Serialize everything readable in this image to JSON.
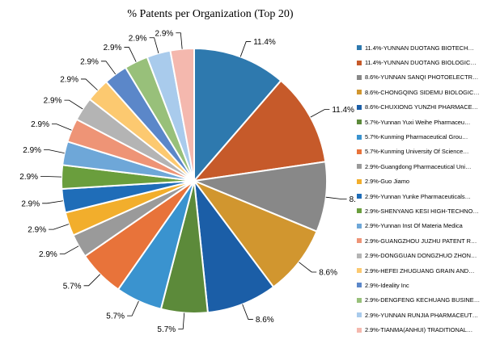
{
  "chart_data": {
    "type": "pie",
    "title": "% Patents per Organization (Top 20)",
    "start_angle_deg": 0,
    "direction": "clockwise",
    "legend_position": "right",
    "slices": [
      {
        "label": "11.4%",
        "legend": "11.4%-YUNNAN DUOTANG BIOTECH…",
        "value": 11.4,
        "color": "#2E79AE"
      },
      {
        "label": "11.4%",
        "legend": "11.4%-YUNNAN DUOTANG BIOLOGIC…",
        "value": 11.4,
        "color": "#C65A2A"
      },
      {
        "label": "8.6%",
        "legend": "8.6%-YUNNAN SANQI PHOTOELECTR…",
        "value": 8.6,
        "color": "#888888"
      },
      {
        "label": "8.6%",
        "legend": "8.6%-CHONGQING SIDEMU BIOLOGIC…",
        "value": 8.6,
        "color": "#D1962F"
      },
      {
        "label": "8.6%",
        "legend": "8.6%-CHUXIONG YUNZHI PHARMACE…",
        "value": 8.6,
        "color": "#1B5EA7"
      },
      {
        "label": "5.7%",
        "legend": "5.7%-Yunnan Yuxi Weihe Pharmaceu…",
        "value": 5.7,
        "color": "#5C8A3A"
      },
      {
        "label": "5.7%",
        "legend": "5.7%-Kunming Pharmaceutical Grou…",
        "value": 5.7,
        "color": "#3A93CF"
      },
      {
        "label": "5.7%",
        "legend": "5.7%-Kunming University Of Science…",
        "value": 5.7,
        "color": "#E8733A"
      },
      {
        "label": "2.9%",
        "legend": "2.9%-Guangdong Pharmaceutical Uni…",
        "value": 2.9,
        "color": "#9A9A9A"
      },
      {
        "label": "2.9%",
        "legend": "2.9%-Guo Jiamo",
        "value": 2.9,
        "color": "#F2AE2C"
      },
      {
        "label": "2.9%",
        "legend": "2.9%-Yunnan Yunke Pharmaceuticals…",
        "value": 2.9,
        "color": "#1F6DB8"
      },
      {
        "label": "2.9%",
        "legend": "2.9%-SHENYANG KESI HIGH-TECHNO…",
        "value": 2.9,
        "color": "#6A9E3D"
      },
      {
        "label": "2.9%",
        "legend": "2.9%-Yunnan Inst Of Materia Medica",
        "value": 2.9,
        "color": "#6EA7D8"
      },
      {
        "label": "2.9%",
        "legend": "2.9%-GUANGZHOU JUZHU PATENT R…",
        "value": 2.9,
        "color": "#EE9476"
      },
      {
        "label": "2.9%",
        "legend": "2.9%-DONGGUAN DONGZHUO ZHON…",
        "value": 2.9,
        "color": "#B4B4B4"
      },
      {
        "label": "2.9%",
        "legend": "2.9%-HEFEI ZHUGUANG GRAIN AND…",
        "value": 2.9,
        "color": "#FCC970"
      },
      {
        "label": "2.9%",
        "legend": "2.9%-Ideality Inc",
        "value": 2.9,
        "color": "#5B87C9"
      },
      {
        "label": "2.9%",
        "legend": "2.9%-DENGFENG KECHUANG BUSINE…",
        "value": 2.9,
        "color": "#98C07A"
      },
      {
        "label": "2.9%",
        "legend": "2.9%-YUNNAN RUNJIA PHARMACEUT…",
        "value": 2.9,
        "color": "#A9CBEC"
      },
      {
        "label": "2.9%",
        "legend": "2.9%-TIANMA(ANHUI) TRADITIONAL…",
        "value": 2.9,
        "color": "#F4B8AE"
      }
    ]
  }
}
